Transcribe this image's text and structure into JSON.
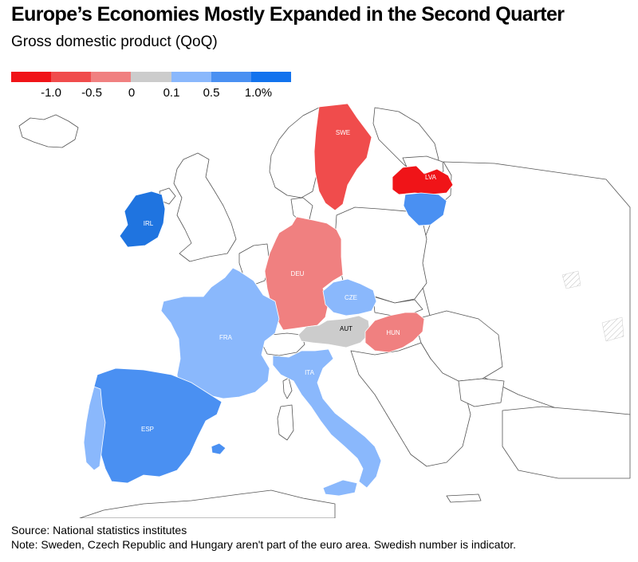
{
  "title": "Europe’s Economies Mostly Expanded in the Second Quarter",
  "subtitle": "Gross domestic product (QoQ)",
  "legend": {
    "colors": [
      "#f01418",
      "#f04c4c",
      "#f08080",
      "#cccccc",
      "#8ab8fc",
      "#4a90f2",
      "#1273ee"
    ],
    "labels": [
      "-1.0",
      "-0.5",
      "0",
      "0.1",
      "0.5",
      "1.0%"
    ]
  },
  "countries": {
    "swe": {
      "label": "SWE",
      "color": "#f04c4c",
      "label_color": "#ffffff"
    },
    "lva": {
      "label": "LVA",
      "color": "#f01418",
      "label_color": "#ffffff"
    },
    "ltu": {
      "label": "",
      "color": "#4a90f2"
    },
    "irl": {
      "label": "IRL",
      "color": "#1f74e0",
      "label_color": "#ffffff"
    },
    "deu": {
      "label": "DEU",
      "color": "#f08080",
      "label_color": "#ffffff"
    },
    "cze": {
      "label": "CZE",
      "color": "#8ab8fc",
      "label_color": "#ffffff"
    },
    "aut": {
      "label": "AUT",
      "color": "#cccccc",
      "label_color": "#000000"
    },
    "hun": {
      "label": "HUN",
      "color": "#f08080",
      "label_color": "#ffffff"
    },
    "fra": {
      "label": "FRA",
      "color": "#8ab8fc",
      "label_color": "#ffffff"
    },
    "ita": {
      "label": "ITA",
      "color": "#8ab8fc",
      "label_color": "#ffffff"
    },
    "esp": {
      "label": "ESP",
      "color": "#4a90f2",
      "label_color": "#ffffff"
    },
    "prt": {
      "label": "",
      "color": "#8ab8fc"
    }
  },
  "footer": {
    "source": "Source: National statistics institutes",
    "note": "Note: Sweden, Czech Republic and Hungary aren't part of the euro area. Swedish number is indicator."
  }
}
